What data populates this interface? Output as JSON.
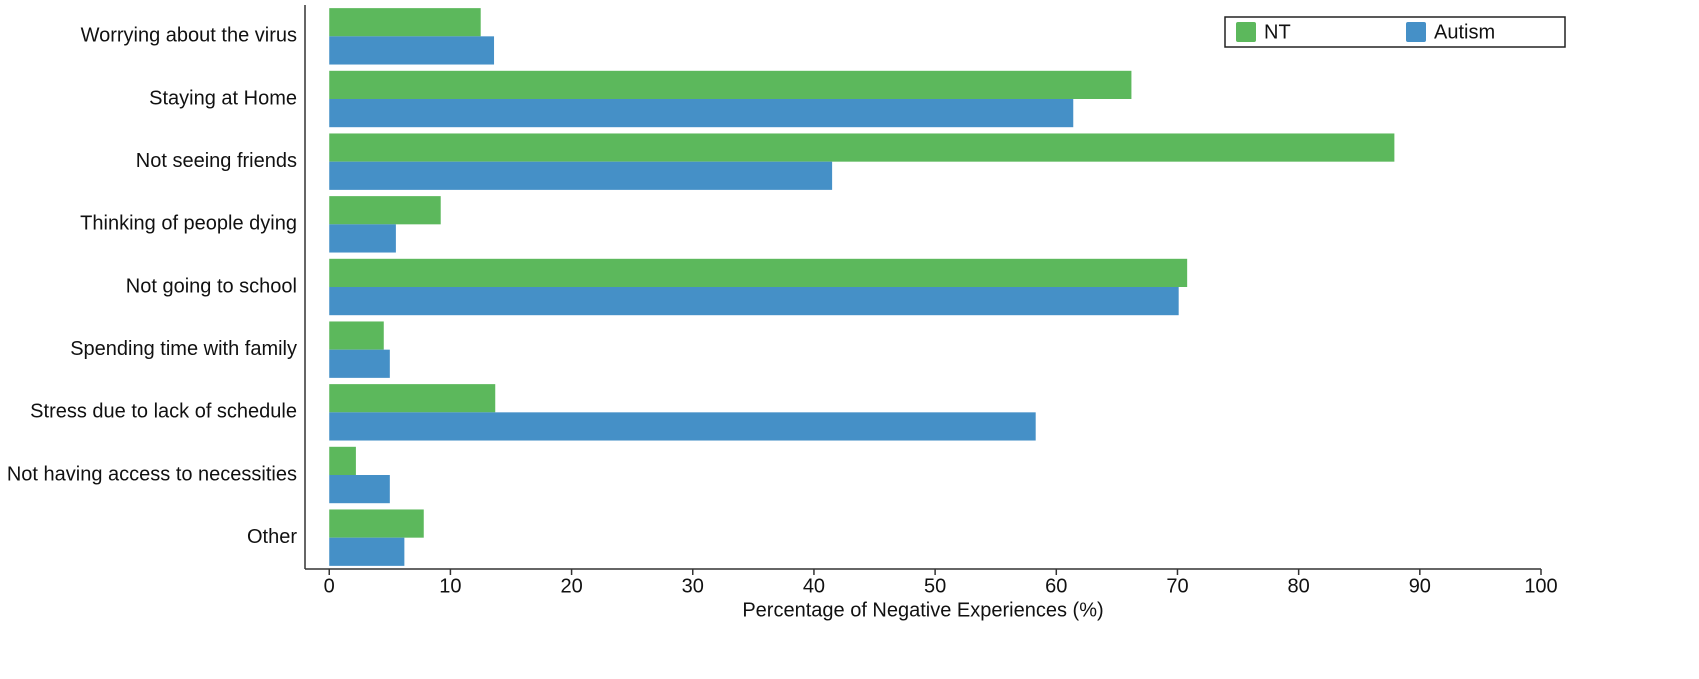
{
  "chart_data": {
    "type": "barh",
    "xlabel": "Percentage of Negative Experiences (%)",
    "categories": [
      "Worrying about the virus",
      "Staying at Home",
      "Not seeing friends",
      "Thinking of people dying",
      "Not going to school",
      "Spending time with family",
      "Stress due to lack of schedule",
      "Not having access to necessities",
      "Other"
    ],
    "series": [
      {
        "name": "NT",
        "color": "#5cb85c",
        "values": [
          12.5,
          66.2,
          87.9,
          9.2,
          70.8,
          4.5,
          13.7,
          2.2,
          7.8
        ]
      },
      {
        "name": "Autism",
        "color": "#4590c7",
        "values": [
          13.6,
          61.4,
          41.5,
          5.5,
          70.1,
          5.0,
          58.3,
          5.0,
          6.2
        ]
      }
    ],
    "xlim": [
      -2,
      100
    ],
    "xticks": [
      0,
      10,
      20,
      30,
      40,
      50,
      60,
      70,
      80,
      90,
      100
    ],
    "legend": "upper right"
  }
}
